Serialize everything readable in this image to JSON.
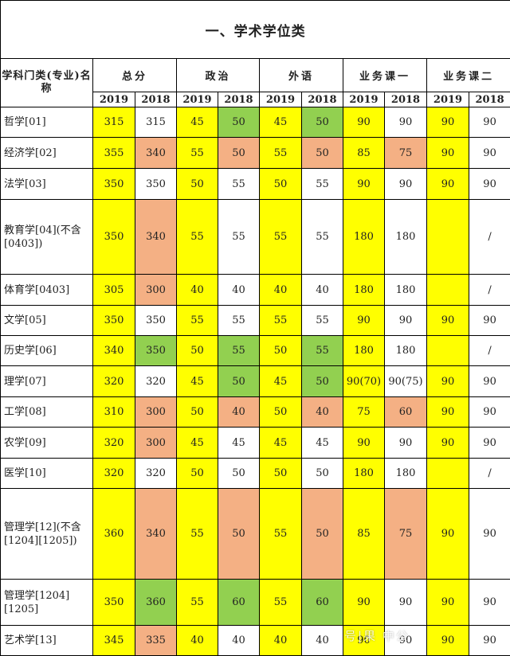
{
  "title": "一、学术学位类",
  "header": {
    "first_col": "学科门类(专业)名称",
    "groups": [
      "总分",
      "政治",
      "外语",
      "业务课一",
      "业务课二"
    ],
    "years": [
      "2019",
      "2018"
    ]
  },
  "legend_colors": {
    "yellow": "#ffff00",
    "green": "#92d050",
    "orange": "#f4b084",
    "white": "#ffffff"
  },
  "rows": [
    {
      "name": "哲学[01]",
      "cells": [
        {
          "v": "315",
          "c": "y"
        },
        {
          "v": "315",
          "c": "w"
        },
        {
          "v": "45",
          "c": "y"
        },
        {
          "v": "50",
          "c": "g"
        },
        {
          "v": "45",
          "c": "y"
        },
        {
          "v": "50",
          "c": "g"
        },
        {
          "v": "90",
          "c": "y"
        },
        {
          "v": "90",
          "c": "w"
        },
        {
          "v": "90",
          "c": "y"
        },
        {
          "v": "90",
          "c": "w"
        }
      ]
    },
    {
      "name": "经济学[02]",
      "cells": [
        {
          "v": "355",
          "c": "y"
        },
        {
          "v": "340",
          "c": "o"
        },
        {
          "v": "55",
          "c": "y"
        },
        {
          "v": "50",
          "c": "o"
        },
        {
          "v": "55",
          "c": "y"
        },
        {
          "v": "50",
          "c": "o"
        },
        {
          "v": "85",
          "c": "y"
        },
        {
          "v": "75",
          "c": "o"
        },
        {
          "v": "90",
          "c": "y"
        },
        {
          "v": "90",
          "c": "w"
        }
      ]
    },
    {
      "name": "法学[03]",
      "cells": [
        {
          "v": "350",
          "c": "y"
        },
        {
          "v": "350",
          "c": "w"
        },
        {
          "v": "50",
          "c": "y"
        },
        {
          "v": "55",
          "c": "w"
        },
        {
          "v": "50",
          "c": "y"
        },
        {
          "v": "55",
          "c": "w"
        },
        {
          "v": "90",
          "c": "y"
        },
        {
          "v": "90",
          "c": "w"
        },
        {
          "v": "90",
          "c": "y"
        },
        {
          "v": "90",
          "c": "w"
        }
      ]
    },
    {
      "name": "教育学[04](不含[0403])",
      "cells": [
        {
          "v": "350",
          "c": "y"
        },
        {
          "v": "340",
          "c": "o"
        },
        {
          "v": "55",
          "c": "y"
        },
        {
          "v": "55",
          "c": "w"
        },
        {
          "v": "55",
          "c": "y"
        },
        {
          "v": "55",
          "c": "w"
        },
        {
          "v": "180",
          "c": "y"
        },
        {
          "v": "180",
          "c": "w"
        },
        {
          "v": "",
          "c": "y"
        },
        {
          "v": "/",
          "c": "w"
        }
      ]
    },
    {
      "name": "体育学[0403]",
      "cells": [
        {
          "v": "305",
          "c": "y"
        },
        {
          "v": "300",
          "c": "o"
        },
        {
          "v": "40",
          "c": "y"
        },
        {
          "v": "40",
          "c": "w"
        },
        {
          "v": "40",
          "c": "y"
        },
        {
          "v": "40",
          "c": "w"
        },
        {
          "v": "180",
          "c": "y"
        },
        {
          "v": "180",
          "c": "w"
        },
        {
          "v": "",
          "c": "y"
        },
        {
          "v": "/",
          "c": "w"
        }
      ]
    },
    {
      "name": "文学[05]",
      "cells": [
        {
          "v": "350",
          "c": "y"
        },
        {
          "v": "350",
          "c": "w"
        },
        {
          "v": "55",
          "c": "y"
        },
        {
          "v": "55",
          "c": "w"
        },
        {
          "v": "55",
          "c": "y"
        },
        {
          "v": "55",
          "c": "w"
        },
        {
          "v": "90",
          "c": "y"
        },
        {
          "v": "90",
          "c": "w"
        },
        {
          "v": "90",
          "c": "y"
        },
        {
          "v": "90",
          "c": "w"
        }
      ]
    },
    {
      "name": "历史学[06]",
      "cells": [
        {
          "v": "340",
          "c": "y"
        },
        {
          "v": "350",
          "c": "g"
        },
        {
          "v": "50",
          "c": "y"
        },
        {
          "v": "55",
          "c": "g"
        },
        {
          "v": "50",
          "c": "y"
        },
        {
          "v": "55",
          "c": "g"
        },
        {
          "v": "180",
          "c": "y"
        },
        {
          "v": "180",
          "c": "w"
        },
        {
          "v": "",
          "c": "y"
        },
        {
          "v": "/",
          "c": "w"
        }
      ]
    },
    {
      "name": "理学[07]",
      "cells": [
        {
          "v": "320",
          "c": "y"
        },
        {
          "v": "320",
          "c": "w"
        },
        {
          "v": "45",
          "c": "y"
        },
        {
          "v": "50",
          "c": "g"
        },
        {
          "v": "45",
          "c": "y"
        },
        {
          "v": "50",
          "c": "g"
        },
        {
          "v": "90(70)",
          "c": "y"
        },
        {
          "v": "90(75)",
          "c": "w"
        },
        {
          "v": "90",
          "c": "y"
        },
        {
          "v": "90",
          "c": "w"
        }
      ]
    },
    {
      "name": "工学[08]",
      "cells": [
        {
          "v": "310",
          "c": "y"
        },
        {
          "v": "300",
          "c": "o"
        },
        {
          "v": "50",
          "c": "y"
        },
        {
          "v": "40",
          "c": "o"
        },
        {
          "v": "50",
          "c": "y"
        },
        {
          "v": "40",
          "c": "o"
        },
        {
          "v": "75",
          "c": "y"
        },
        {
          "v": "60",
          "c": "o"
        },
        {
          "v": "90",
          "c": "y"
        },
        {
          "v": "90",
          "c": "w"
        }
      ]
    },
    {
      "name": "农学[09]",
      "cells": [
        {
          "v": "320",
          "c": "y"
        },
        {
          "v": "300",
          "c": "o"
        },
        {
          "v": "45",
          "c": "y"
        },
        {
          "v": "45",
          "c": "w"
        },
        {
          "v": "45",
          "c": "y"
        },
        {
          "v": "45",
          "c": "w"
        },
        {
          "v": "90",
          "c": "y"
        },
        {
          "v": "90",
          "c": "w"
        },
        {
          "v": "90",
          "c": "y"
        },
        {
          "v": "90",
          "c": "w"
        }
      ]
    },
    {
      "name": "医学[10]",
      "cells": [
        {
          "v": "320",
          "c": "y"
        },
        {
          "v": "320",
          "c": "w"
        },
        {
          "v": "50",
          "c": "y"
        },
        {
          "v": "50",
          "c": "w"
        },
        {
          "v": "50",
          "c": "y"
        },
        {
          "v": "50",
          "c": "w"
        },
        {
          "v": "180",
          "c": "y"
        },
        {
          "v": "180",
          "c": "w"
        },
        {
          "v": "",
          "c": "y"
        },
        {
          "v": "/",
          "c": "w"
        }
      ]
    },
    {
      "name": "管理学[12](不含[1204][1205])",
      "cells": [
        {
          "v": "360",
          "c": "y"
        },
        {
          "v": "340",
          "c": "o"
        },
        {
          "v": "55",
          "c": "y"
        },
        {
          "v": "50",
          "c": "o"
        },
        {
          "v": "55",
          "c": "y"
        },
        {
          "v": "50",
          "c": "o"
        },
        {
          "v": "85",
          "c": "y"
        },
        {
          "v": "75",
          "c": "o"
        },
        {
          "v": "90",
          "c": "y"
        },
        {
          "v": "90",
          "c": "w"
        }
      ]
    },
    {
      "name": "管理学[1204][1205]",
      "cells": [
        {
          "v": "350",
          "c": "y"
        },
        {
          "v": "360",
          "c": "g"
        },
        {
          "v": "55",
          "c": "y"
        },
        {
          "v": "60",
          "c": "g"
        },
        {
          "v": "55",
          "c": "y"
        },
        {
          "v": "60",
          "c": "g"
        },
        {
          "v": "90",
          "c": "y"
        },
        {
          "v": "90",
          "c": "w"
        },
        {
          "v": "90",
          "c": "y"
        },
        {
          "v": "90",
          "c": "w"
        }
      ]
    },
    {
      "name": "艺术学[13]",
      "cells": [
        {
          "v": "345",
          "c": "y"
        },
        {
          "v": "335",
          "c": "o"
        },
        {
          "v": "40",
          "c": "y"
        },
        {
          "v": "40",
          "c": "w"
        },
        {
          "v": "40",
          "c": "y"
        },
        {
          "v": "40",
          "c": "w"
        },
        {
          "v": "90",
          "c": "y"
        },
        {
          "v": "90",
          "c": "w"
        },
        {
          "v": "90",
          "c": "y"
        },
        {
          "v": "90",
          "c": "w"
        }
      ]
    }
  ],
  "watermark": "号|果  中公"
}
